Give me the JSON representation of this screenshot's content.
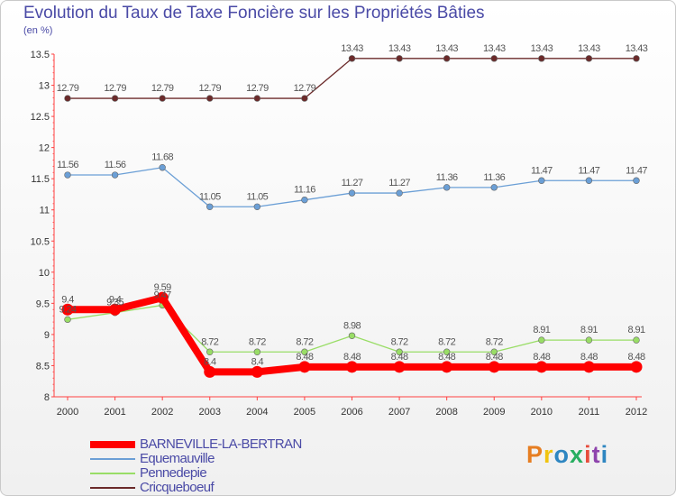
{
  "chart_data": {
    "type": "line",
    "title": "Evolution du Taux de Taxe Foncière sur les Propriétés Bâties",
    "unit_label": "(en %)",
    "x": [
      "2000",
      "2001",
      "2002",
      "2003",
      "2004",
      "2005",
      "2006",
      "2007",
      "2008",
      "2009",
      "2010",
      "2011",
      "2012"
    ],
    "ylim": [
      8,
      13.5
    ],
    "yticks": [
      "8",
      "8.5",
      "9",
      "9.5",
      "10",
      "10.5",
      "11",
      "11.5",
      "12",
      "12.5",
      "13",
      "13.5"
    ],
    "grid": false,
    "legend_position": "bottom-left",
    "series": [
      {
        "name": "BARNEVILLE-LA-BERTRAN",
        "color": "#ff0000",
        "values": [
          9.4,
          9.4,
          9.59,
          8.4,
          8.4,
          8.48,
          8.48,
          8.48,
          8.48,
          8.48,
          8.48,
          8.48,
          8.48
        ]
      },
      {
        "name": "Equemauville",
        "color": "#6b9fd6",
        "values": [
          11.56,
          11.56,
          11.68,
          11.05,
          11.05,
          11.16,
          11.27,
          11.27,
          11.36,
          11.36,
          11.47,
          11.47,
          11.47
        ]
      },
      {
        "name": "Pennedepie",
        "color": "#99dd66",
        "values": [
          9.24,
          9.35,
          9.47,
          8.72,
          8.72,
          8.72,
          8.98,
          8.72,
          8.72,
          8.72,
          8.91,
          8.91,
          8.91
        ]
      },
      {
        "name": "Cricqueboeuf",
        "color": "#6b2a2a",
        "values": [
          12.79,
          12.79,
          12.79,
          12.79,
          12.79,
          12.79,
          13.43,
          13.43,
          13.43,
          13.43,
          13.43,
          13.43,
          13.43
        ]
      }
    ]
  },
  "logo": {
    "text": "Proxiti",
    "colors": [
      "#e67e22",
      "#f1c40f",
      "#2e86c1",
      "#27ae60",
      "#e74c3c",
      "#8e44ad",
      "#2e86c1"
    ]
  }
}
